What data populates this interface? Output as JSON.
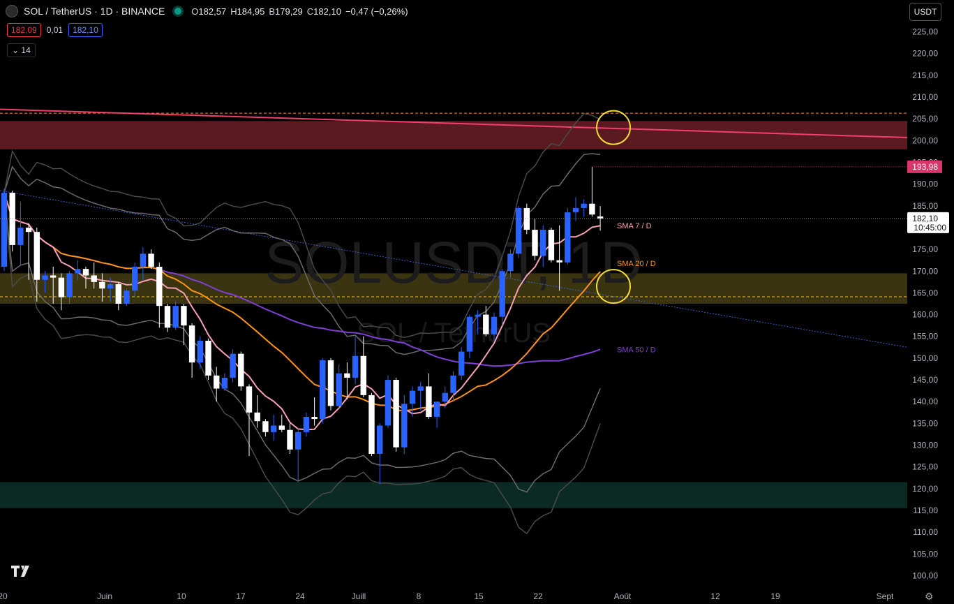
{
  "header": {
    "title": "SOL / TetherUS · 1D · BINANCE",
    "ohlc": [
      {
        "k": "O",
        "v": "182,57"
      },
      {
        "k": "H",
        "v": "184,95"
      },
      {
        "k": "B",
        "v": "179,29"
      },
      {
        "k": "C",
        "v": "182,10"
      }
    ],
    "change": "−0,47 (−0,26%)"
  },
  "bid": "182,09",
  "spread": "0,01",
  "ask": "182,10",
  "indicators_collapse": "14",
  "currency": "USDT",
  "colors": {
    "up": "#2962ff",
    "down": "#ffffff",
    "sma7": "#f7a1b6",
    "sma20": "#ff9315",
    "sma50": "#7e40d6",
    "bands": "#6b6b6b",
    "resistance_line": "#f23f6b",
    "highlight_circle": "#f5dd3a"
  },
  "chart_data": {
    "type": "candlestick",
    "symbol": "SOL / TetherUS",
    "watermark": "SOLUSDT, 1D",
    "watermark_sub": "SOL / TetherUS",
    "y_ticks": [
      "225,00",
      "220,00",
      "215,00",
      "210,00",
      "205,00",
      "200,00",
      "195,00",
      "190,00",
      "185,00",
      "180,00",
      "175,00",
      "170,00",
      "165,00",
      "160,00",
      "155,00",
      "150,00",
      "145,00",
      "140,00",
      "135,00",
      "130,00",
      "125,00",
      "120,00",
      "115,00",
      "110,00",
      "105,00",
      "100,00"
    ],
    "y_range": [
      97.5,
      227.5
    ],
    "x_labels": [
      "20",
      "Juin",
      "10",
      "17",
      "24",
      "Juill",
      "8",
      "15",
      "22",
      "Août",
      "12",
      "19",
      "Sept"
    ],
    "last_price": "182,10",
    "countdown": "10:45:00",
    "marked_high": "193,98",
    "sma_labels": [
      "SMA 7 / D",
      "SMA 20 / D",
      "SMA 50 / D"
    ],
    "zones": [
      {
        "name": "resistance",
        "from": 198.0,
        "to": 204.5,
        "color": "#5a1a20"
      },
      {
        "name": "support-mid",
        "from": 162.5,
        "to": 169.5,
        "color": "#3b3410"
      },
      {
        "name": "support-low",
        "from": 115.5,
        "to": 121.5,
        "color": "#0b2a24"
      }
    ],
    "dashed_levels": [
      206.3,
      164.1
    ],
    "candles": [
      {
        "o": 171.0,
        "h": 189.0,
        "l": 170.0,
        "c": 188.0
      },
      {
        "o": 188.0,
        "h": 188.5,
        "l": 174.5,
        "c": 176.0
      },
      {
        "o": 176.0,
        "h": 186.0,
        "l": 171.5,
        "c": 180.0
      },
      {
        "o": 180.0,
        "h": 181.0,
        "l": 168.0,
        "c": 179.0
      },
      {
        "o": 179.0,
        "h": 180.0,
        "l": 163.0,
        "c": 168.0
      },
      {
        "o": 168.0,
        "h": 170.0,
        "l": 165.0,
        "c": 169.0
      },
      {
        "o": 169.0,
        "h": 171.0,
        "l": 162.5,
        "c": 168.5
      },
      {
        "o": 168.5,
        "h": 169.5,
        "l": 161.0,
        "c": 164.0
      },
      {
        "o": 164.0,
        "h": 170.0,
        "l": 162.5,
        "c": 169.5
      },
      {
        "o": 169.5,
        "h": 172.5,
        "l": 168.0,
        "c": 170.5
      },
      {
        "o": 170.5,
        "h": 171.0,
        "l": 166.0,
        "c": 169.0
      },
      {
        "o": 169.0,
        "h": 172.0,
        "l": 166.0,
        "c": 167.5
      },
      {
        "o": 167.5,
        "h": 169.5,
        "l": 163.0,
        "c": 166.0
      },
      {
        "o": 166.0,
        "h": 168.5,
        "l": 163.0,
        "c": 167.0
      },
      {
        "o": 167.0,
        "h": 167.5,
        "l": 161.0,
        "c": 162.5
      },
      {
        "o": 162.5,
        "h": 166.0,
        "l": 162.0,
        "c": 165.5
      },
      {
        "o": 165.5,
        "h": 172.0,
        "l": 164.0,
        "c": 171.0
      },
      {
        "o": 171.0,
        "h": 175.5,
        "l": 168.0,
        "c": 174.0
      },
      {
        "o": 174.0,
        "h": 175.0,
        "l": 170.5,
        "c": 171.0
      },
      {
        "o": 171.0,
        "h": 172.0,
        "l": 157.0,
        "c": 162.0
      },
      {
        "o": 162.0,
        "h": 162.5,
        "l": 156.0,
        "c": 157.0
      },
      {
        "o": 157.0,
        "h": 163.0,
        "l": 156.5,
        "c": 162.0
      },
      {
        "o": 162.0,
        "h": 162.5,
        "l": 153.0,
        "c": 157.5
      },
      {
        "o": 157.5,
        "h": 158.0,
        "l": 145.5,
        "c": 149.0
      },
      {
        "o": 149.0,
        "h": 155.0,
        "l": 147.5,
        "c": 154.0
      },
      {
        "o": 154.0,
        "h": 154.5,
        "l": 145.0,
        "c": 146.0
      },
      {
        "o": 146.0,
        "h": 148.0,
        "l": 140.0,
        "c": 143.0
      },
      {
        "o": 143.0,
        "h": 146.5,
        "l": 142.5,
        "c": 145.5
      },
      {
        "o": 145.5,
        "h": 152.0,
        "l": 144.5,
        "c": 151.0
      },
      {
        "o": 151.0,
        "h": 151.5,
        "l": 142.5,
        "c": 143.5
      },
      {
        "o": 143.5,
        "h": 144.0,
        "l": 127.5,
        "c": 137.5
      },
      {
        "o": 137.5,
        "h": 141.5,
        "l": 134.0,
        "c": 135.5
      },
      {
        "o": 135.5,
        "h": 136.0,
        "l": 132.0,
        "c": 133.0
      },
      {
        "o": 133.0,
        "h": 137.0,
        "l": 131.0,
        "c": 134.5
      },
      {
        "o": 134.5,
        "h": 137.0,
        "l": 133.0,
        "c": 133.5
      },
      {
        "o": 133.5,
        "h": 135.0,
        "l": 128.0,
        "c": 129.0
      },
      {
        "o": 129.0,
        "h": 134.0,
        "l": 121.5,
        "c": 133.0
      },
      {
        "o": 133.0,
        "h": 137.5,
        "l": 132.0,
        "c": 136.5
      },
      {
        "o": 136.5,
        "h": 141.0,
        "l": 134.5,
        "c": 136.0
      },
      {
        "o": 136.0,
        "h": 150.0,
        "l": 135.0,
        "c": 149.5
      },
      {
        "o": 149.5,
        "h": 150.0,
        "l": 138.0,
        "c": 139.0
      },
      {
        "o": 139.0,
        "h": 148.5,
        "l": 138.5,
        "c": 146.5
      },
      {
        "o": 146.5,
        "h": 149.0,
        "l": 140.5,
        "c": 145.5
      },
      {
        "o": 145.5,
        "h": 155.0,
        "l": 144.0,
        "c": 150.5
      },
      {
        "o": 150.5,
        "h": 155.0,
        "l": 141.0,
        "c": 141.5
      },
      {
        "o": 141.5,
        "h": 142.0,
        "l": 127.5,
        "c": 128.0
      },
      {
        "o": 128.0,
        "h": 135.0,
        "l": 121.0,
        "c": 134.5
      },
      {
        "o": 134.5,
        "h": 146.0,
        "l": 134.0,
        "c": 145.0
      },
      {
        "o": 145.0,
        "h": 145.5,
        "l": 128.5,
        "c": 129.5
      },
      {
        "o": 129.5,
        "h": 141.5,
        "l": 128.0,
        "c": 139.5
      },
      {
        "o": 139.5,
        "h": 143.5,
        "l": 136.5,
        "c": 142.5
      },
      {
        "o": 142.5,
        "h": 144.5,
        "l": 138.0,
        "c": 143.5
      },
      {
        "o": 143.5,
        "h": 146.5,
        "l": 136.0,
        "c": 136.5
      },
      {
        "o": 136.5,
        "h": 140.0,
        "l": 134.0,
        "c": 140.0
      },
      {
        "o": 140.0,
        "h": 143.5,
        "l": 138.5,
        "c": 142.0
      },
      {
        "o": 142.0,
        "h": 147.0,
        "l": 140.0,
        "c": 146.0
      },
      {
        "o": 146.0,
        "h": 152.5,
        "l": 145.0,
        "c": 151.5
      },
      {
        "o": 151.5,
        "h": 160.0,
        "l": 150.0,
        "c": 159.5
      },
      {
        "o": 159.5,
        "h": 161.0,
        "l": 155.5,
        "c": 160.0
      },
      {
        "o": 160.0,
        "h": 162.0,
        "l": 155.0,
        "c": 155.5
      },
      {
        "o": 155.5,
        "h": 160.5,
        "l": 154.0,
        "c": 159.5
      },
      {
        "o": 159.5,
        "h": 170.5,
        "l": 157.5,
        "c": 170.0
      },
      {
        "o": 170.0,
        "h": 175.0,
        "l": 168.5,
        "c": 174.0
      },
      {
        "o": 174.0,
        "h": 185.0,
        "l": 173.0,
        "c": 184.5
      },
      {
        "o": 184.5,
        "h": 185.5,
        "l": 178.5,
        "c": 179.5
      },
      {
        "o": 179.5,
        "h": 182.0,
        "l": 172.5,
        "c": 173.5
      },
      {
        "o": 173.5,
        "h": 180.5,
        "l": 171.0,
        "c": 179.5
      },
      {
        "o": 179.5,
        "h": 180.0,
        "l": 172.0,
        "c": 172.5
      },
      {
        "o": 172.5,
        "h": 180.5,
        "l": 165.5,
        "c": 172.0
      },
      {
        "o": 172.0,
        "h": 184.5,
        "l": 171.5,
        "c": 183.5
      },
      {
        "o": 183.5,
        "h": 187.0,
        "l": 181.5,
        "c": 184.5
      },
      {
        "o": 184.5,
        "h": 186.5,
        "l": 182.5,
        "c": 185.5
      },
      {
        "o": 185.5,
        "h": 193.98,
        "l": 182.5,
        "c": 183.0
      },
      {
        "o": 182.57,
        "h": 184.95,
        "l": 179.29,
        "c": 182.1
      }
    ]
  }
}
